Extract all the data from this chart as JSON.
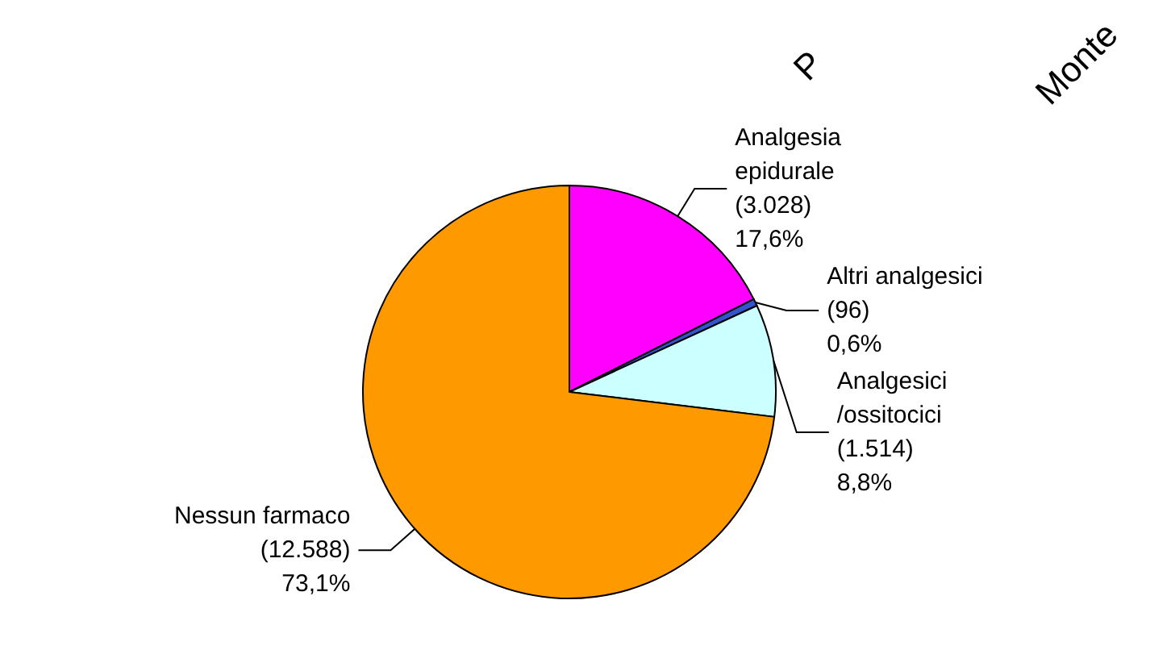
{
  "chart_data": {
    "type": "pie",
    "categories": [
      "Analgesia epidurale",
      "Altri analgesici",
      "Analgesici /ossitocici",
      "Nessun farmaco"
    ],
    "values": [
      3028,
      96,
      1514,
      12588
    ],
    "value_labels": [
      "(3.028)\n17,6%",
      "(96)\n0,6%",
      "(1.514)\n8,8%",
      "(12.588)\n73,1%"
    ],
    "colors": [
      "#ff00ff",
      "#3355cc",
      "#ccffff",
      "#ff9900"
    ],
    "annotations": [
      "P",
      "Monte"
    ]
  }
}
